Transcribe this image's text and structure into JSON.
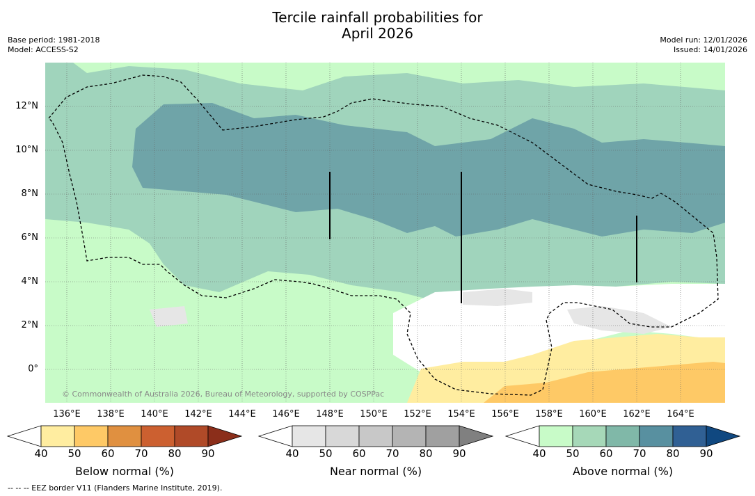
{
  "title_line1": "Tercile rainfall probabilities for",
  "title_line2": "April 2026",
  "base_period": "Base period: 1981-2018",
  "model": "Model: ACCESS-S2",
  "model_run": "Model run: 12/01/2026",
  "issued": "Issued: 14/01/2026",
  "copyright": "© Commonwealth of Australia 2026, Bureau of Meteorology, supported by COSPPac",
  "lat_labels": [
    "12°N",
    "10°N",
    "8°N",
    "6°N",
    "4°N",
    "2°N",
    "0°"
  ],
  "lon_labels": [
    "136°E",
    "138°E",
    "140°E",
    "142°E",
    "144°E",
    "146°E",
    "148°E",
    "150°E",
    "152°E",
    "154°E",
    "156°E",
    "158°E",
    "160°E",
    "162°E",
    "164°E"
  ],
  "colorbars": [
    {
      "label": "Below normal (%)",
      "colors": [
        "#ffeda0",
        "#fec966",
        "#e09040",
        "#cc6030",
        "#b04a28",
        "#8b2e1a"
      ]
    },
    {
      "label": "Near normal (%)",
      "colors": [
        "#e6e6e6",
        "#d8d8d8",
        "#c8c8c8",
        "#b4b4b4",
        "#a0a0a0",
        "#808080"
      ]
    },
    {
      "label": "Above normal (%)",
      "colors": [
        "#c8fbc8",
        "#a6d8b8",
        "#80b8a8",
        "#5890a0",
        "#306094",
        "#104880"
      ]
    }
  ],
  "colorbar_ticks": [
    "40",
    "50",
    "60",
    "70",
    "80",
    "90"
  ],
  "footer": "--  --  -- EEZ border V11 (Flanders Marine Institute, 2019)."
}
